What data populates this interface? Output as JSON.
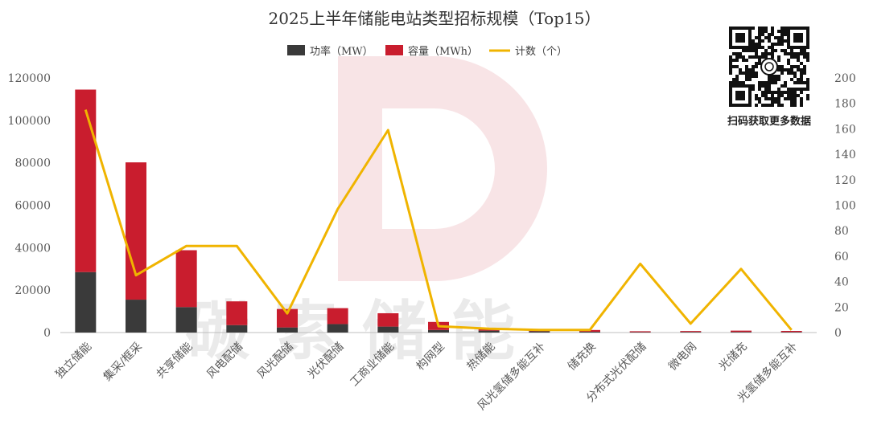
{
  "watermark": {
    "logo_letter": "D",
    "text": "碳索储能"
  },
  "qr": {
    "caption": "扫码获取更多数据"
  },
  "chart_data": {
    "type": "bar+line",
    "title": "2025上半年储能电站类型招标规模（Top15）",
    "categories": [
      "独立储能",
      "集采/框采",
      "共享储能",
      "风电配储",
      "风光配储",
      "光伏配储",
      "工商业储能",
      "构网型",
      "热储能",
      "风光氢储多能互补",
      "储充换",
      "分布式光伏配储",
      "微电网",
      "光储充",
      "光氢储多能互补"
    ],
    "series": [
      {
        "name": "功率（MW）",
        "type": "stacked-bar",
        "axis": "left",
        "color": "#3a3a3a",
        "values": [
          28500,
          15500,
          12000,
          3500,
          2400,
          4000,
          2800,
          1200,
          900,
          600,
          400,
          200,
          300,
          300,
          250
        ]
      },
      {
        "name": "容量（MWh）",
        "type": "stacked-bar",
        "axis": "left",
        "color": "#c91d2e",
        "values": [
          86000,
          64700,
          26800,
          11200,
          8700,
          7500,
          6300,
          3800,
          1100,
          900,
          800,
          400,
          400,
          600,
          500
        ]
      },
      {
        "name": "计数（个）",
        "type": "line",
        "axis": "right",
        "color": "#f0b400",
        "values": [
          175,
          45,
          68,
          68,
          15,
          97,
          159,
          5,
          3,
          2,
          2,
          54,
          7,
          50,
          2
        ]
      }
    ],
    "y_left": {
      "min": 0,
      "max": 120000,
      "ticks": [
        "0",
        "20000",
        "40000",
        "60000",
        "80000",
        "100000",
        "120000"
      ]
    },
    "y_right": {
      "min": 0,
      "max": 200,
      "ticks": [
        "0",
        "20",
        "40",
        "60",
        "80",
        "100",
        "120",
        "140",
        "160",
        "180",
        "200"
      ]
    },
    "legend_position": "top-center",
    "grid": false
  }
}
